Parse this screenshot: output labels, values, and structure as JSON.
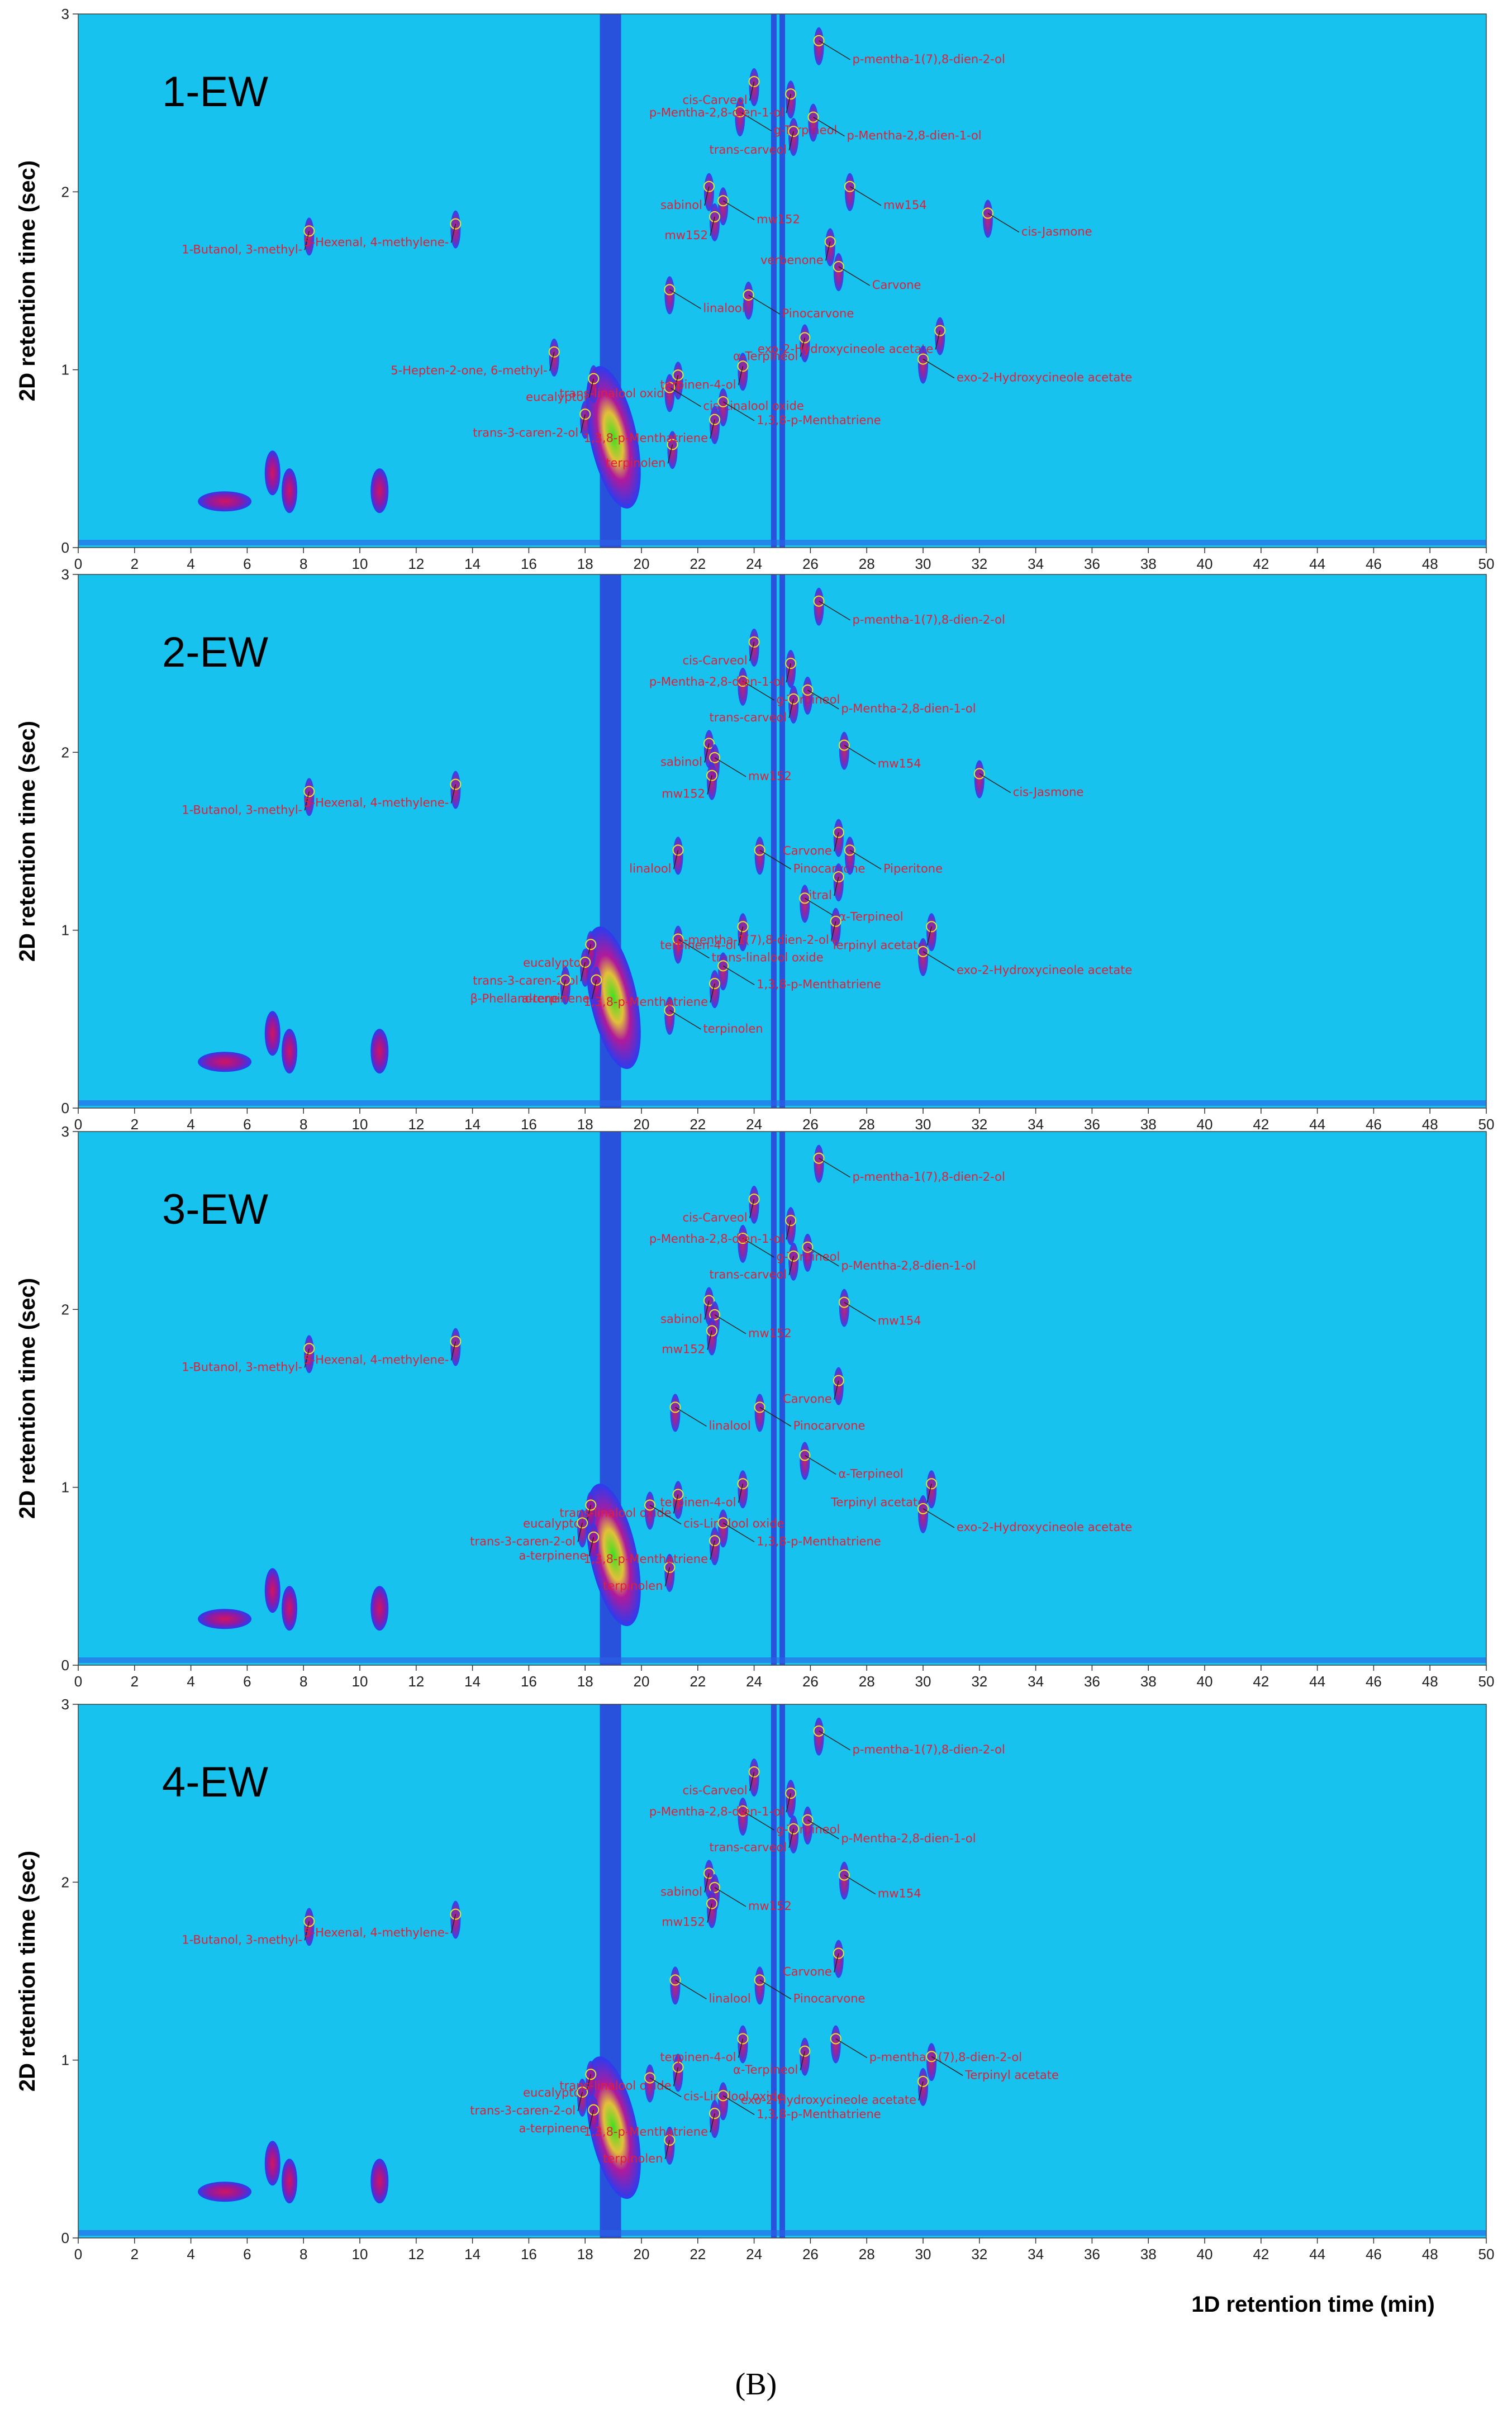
{
  "chart_data": {
    "type": "heatmap",
    "title": "",
    "xlabel": "1D retention time (min)",
    "ylabel": "2D retention time (sec)",
    "xlim": [
      0,
      50
    ],
    "ylim": [
      0,
      3
    ],
    "x_ticks": [
      "0",
      "2",
      "4",
      "6",
      "8",
      "10",
      "12",
      "14",
      "16",
      "18",
      "20",
      "22",
      "24",
      "26",
      "28",
      "30",
      "32",
      "34",
      "36",
      "38",
      "40",
      "42",
      "44",
      "46",
      "48",
      "50"
    ],
    "y_ticks": [
      "0",
      "1",
      "2",
      "3"
    ],
    "legend": "none",
    "caption": "(B)",
    "colors": {
      "background": "#18c2ee",
      "peak_low": "#2a3cf0",
      "peak_mid": "#b01a9a",
      "peak_high": "#3de020",
      "label": "#e0203a"
    },
    "panels": [
      {
        "label": "1-EW",
        "peaks": [
          {
            "name": "1-Butanol, 3-methyl-",
            "x": 8.2,
            "y": 1.78
          },
          {
            "name": "5-Hexenal, 4-methylene-",
            "x": 13.4,
            "y": 1.82
          },
          {
            "name": "5-Hepten-2-one, 6-methyl-",
            "x": 16.9,
            "y": 1.1
          },
          {
            "name": "eucalyptol",
            "x": 18.3,
            "y": 0.95
          },
          {
            "name": "trans-3-caren-2-ol",
            "x": 18.0,
            "y": 0.75
          },
          {
            "name": "terpinolen",
            "x": 21.1,
            "y": 0.58
          },
          {
            "name": "linalool",
            "x": 21.0,
            "y": 1.45
          },
          {
            "name": "trans-linalool oxide",
            "x": 21.3,
            "y": 0.97
          },
          {
            "name": "cis-Linalool oxide",
            "x": 21.0,
            "y": 0.9
          },
          {
            "name": "sabinol",
            "x": 22.4,
            "y": 2.03
          },
          {
            "name": "mw152",
            "x": 22.9,
            "y": 1.95
          },
          {
            "name": "mw152",
            "x": 22.6,
            "y": 1.86
          },
          {
            "name": "g-Terpineol",
            "x": 23.5,
            "y": 2.45
          },
          {
            "name": "cis-Carveol",
            "x": 24.0,
            "y": 2.62
          },
          {
            "name": "Pinocarvone",
            "x": 23.8,
            "y": 1.42
          },
          {
            "name": "terpinen-4-ol",
            "x": 23.6,
            "y": 1.02
          },
          {
            "name": "1,3,8-p-Menthatriene",
            "x": 22.9,
            "y": 0.82
          },
          {
            "name": "1,3,8-p-Menthatriene",
            "x": 22.6,
            "y": 0.72
          },
          {
            "name": "p-mentha-1(7),8-dien-2-ol",
            "x": 26.3,
            "y": 2.85
          },
          {
            "name": "p-Mentha-2,8-dien-1-ol",
            "x": 25.3,
            "y": 2.55
          },
          {
            "name": "p-Mentha-2,8-dien-1-ol",
            "x": 26.1,
            "y": 2.42
          },
          {
            "name": "trans-carveol",
            "x": 25.4,
            "y": 2.34
          },
          {
            "name": "mw154",
            "x": 27.4,
            "y": 2.03
          },
          {
            "name": "verbenone",
            "x": 26.7,
            "y": 1.72
          },
          {
            "name": "Carvone",
            "x": 27.0,
            "y": 1.58
          },
          {
            "name": "α-Terpineol",
            "x": 25.8,
            "y": 1.18
          },
          {
            "name": "cis-Jasmone",
            "x": 32.3,
            "y": 1.88
          },
          {
            "name": "exo-2-Hydroxycineole acetate",
            "x": 30.6,
            "y": 1.22
          },
          {
            "name": "exo-2-Hydroxycineole acetate",
            "x": 30.0,
            "y": 1.06
          }
        ]
      },
      {
        "label": "2-EW",
        "peaks": [
          {
            "name": "1-Butanol, 3-methyl-",
            "x": 8.2,
            "y": 1.78
          },
          {
            "name": "5-Hexenal, 4-methylene-",
            "x": 13.4,
            "y": 1.82
          },
          {
            "name": "eucalyptol",
            "x": 18.2,
            "y": 0.92
          },
          {
            "name": "trans-3-caren-2-ol",
            "x": 18.0,
            "y": 0.82
          },
          {
            "name": "β-Phellandrene",
            "x": 17.3,
            "y": 0.72
          },
          {
            "name": "a-terpinene",
            "x": 18.4,
            "y": 0.72
          },
          {
            "name": "terpinolen",
            "x": 21.0,
            "y": 0.55
          },
          {
            "name": "linalool",
            "x": 21.3,
            "y": 1.45
          },
          {
            "name": "trans-linalool oxide",
            "x": 21.3,
            "y": 0.95
          },
          {
            "name": "sabinol",
            "x": 22.4,
            "y": 2.05
          },
          {
            "name": "mw152",
            "x": 22.6,
            "y": 1.97
          },
          {
            "name": "mw152",
            "x": 22.5,
            "y": 1.87
          },
          {
            "name": "g-Terpineol",
            "x": 23.6,
            "y": 2.4
          },
          {
            "name": "cis-Carveol",
            "x": 24.0,
            "y": 2.62
          },
          {
            "name": "Pinocarvone",
            "x": 24.2,
            "y": 1.45
          },
          {
            "name": "terpinen-4-ol",
            "x": 23.6,
            "y": 1.02
          },
          {
            "name": "1,3,8-p-Menthatriene",
            "x": 22.9,
            "y": 0.8
          },
          {
            "name": "1,3,8-p-Menthatriene",
            "x": 22.6,
            "y": 0.7
          },
          {
            "name": "p-mentha-1(7),8-dien-2-ol",
            "x": 26.3,
            "y": 2.85
          },
          {
            "name": "p-Mentha-2,8-dien-1-ol",
            "x": 25.3,
            "y": 2.5
          },
          {
            "name": "p-Mentha-2,8-dien-1-ol",
            "x": 25.9,
            "y": 2.35
          },
          {
            "name": "trans-carveol",
            "x": 25.4,
            "y": 2.3
          },
          {
            "name": "mw154",
            "x": 27.2,
            "y": 2.04
          },
          {
            "name": "Carvone",
            "x": 27.0,
            "y": 1.55
          },
          {
            "name": "Piperitone",
            "x": 27.4,
            "y": 1.45
          },
          {
            "name": "Citral",
            "x": 27.0,
            "y": 1.3
          },
          {
            "name": "α-Terpineol",
            "x": 25.8,
            "y": 1.18
          },
          {
            "name": "p-mentha-1(7),8-dien-2-ol",
            "x": 26.9,
            "y": 1.05
          },
          {
            "name": "cis-Jasmone",
            "x": 32.0,
            "y": 1.88
          },
          {
            "name": "Terpinyl acetate",
            "x": 30.3,
            "y": 1.02
          },
          {
            "name": "exo-2-Hydroxycineole acetate",
            "x": 30.0,
            "y": 0.88
          }
        ]
      },
      {
        "label": "3-EW",
        "peaks": [
          {
            "name": "1-Butanol, 3-methyl-",
            "x": 8.2,
            "y": 1.78
          },
          {
            "name": "5-Hexenal, 4-methylene-",
            "x": 13.4,
            "y": 1.82
          },
          {
            "name": "eucalyptol",
            "x": 18.2,
            "y": 0.9
          },
          {
            "name": "trans-3-caren-2-ol",
            "x": 17.9,
            "y": 0.8
          },
          {
            "name": "a-terpinene",
            "x": 18.3,
            "y": 0.72
          },
          {
            "name": "terpinolen",
            "x": 21.0,
            "y": 0.55
          },
          {
            "name": "linalool",
            "x": 21.2,
            "y": 1.45
          },
          {
            "name": "trans-linalool oxide",
            "x": 21.3,
            "y": 0.96
          },
          {
            "name": "cis-Linalool oxide",
            "x": 20.3,
            "y": 0.9
          },
          {
            "name": "sabinol",
            "x": 22.4,
            "y": 2.05
          },
          {
            "name": "mw152",
            "x": 22.6,
            "y": 1.97
          },
          {
            "name": "mw152",
            "x": 22.5,
            "y": 1.88
          },
          {
            "name": "g-Terpineol",
            "x": 23.6,
            "y": 2.4
          },
          {
            "name": "cis-Carveol",
            "x": 24.0,
            "y": 2.62
          },
          {
            "name": "Pinocarvone",
            "x": 24.2,
            "y": 1.45
          },
          {
            "name": "terpinen-4-ol",
            "x": 23.6,
            "y": 1.02
          },
          {
            "name": "1,3,8-p-Menthatriene",
            "x": 22.9,
            "y": 0.8
          },
          {
            "name": "1,3,8-p-Menthatriene",
            "x": 22.6,
            "y": 0.7
          },
          {
            "name": "p-mentha-1(7),8-dien-2-ol",
            "x": 26.3,
            "y": 2.85
          },
          {
            "name": "p-Mentha-2,8-dien-1-ol",
            "x": 25.3,
            "y": 2.5
          },
          {
            "name": "p-Mentha-2,8-dien-1-ol",
            "x": 25.9,
            "y": 2.35
          },
          {
            "name": "trans-carveol",
            "x": 25.4,
            "y": 2.3
          },
          {
            "name": "mw154",
            "x": 27.2,
            "y": 2.04
          },
          {
            "name": "Carvone",
            "x": 27.0,
            "y": 1.6
          },
          {
            "name": "α-Terpineol",
            "x": 25.8,
            "y": 1.18
          },
          {
            "name": "Terpinyl acetate",
            "x": 30.3,
            "y": 1.02
          },
          {
            "name": "exo-2-Hydroxycineole acetate",
            "x": 30.0,
            "y": 0.88
          }
        ]
      },
      {
        "label": "4-EW",
        "peaks": [
          {
            "name": "1-Butanol, 3-methyl-",
            "x": 8.2,
            "y": 1.78
          },
          {
            "name": "5-Hexenal, 4-methylene-",
            "x": 13.4,
            "y": 1.82
          },
          {
            "name": "eucalyptol",
            "x": 18.2,
            "y": 0.92
          },
          {
            "name": "trans-3-caren-2-ol",
            "x": 17.9,
            "y": 0.82
          },
          {
            "name": "a-terpinene",
            "x": 18.3,
            "y": 0.72
          },
          {
            "name": "terpinolen",
            "x": 21.0,
            "y": 0.55
          },
          {
            "name": "linalool",
            "x": 21.2,
            "y": 1.45
          },
          {
            "name": "trans-linalool oxide",
            "x": 21.3,
            "y": 0.96
          },
          {
            "name": "cis-Linalool oxide",
            "x": 20.3,
            "y": 0.9
          },
          {
            "name": "sabinol",
            "x": 22.4,
            "y": 2.05
          },
          {
            "name": "mw152",
            "x": 22.6,
            "y": 1.97
          },
          {
            "name": "mw152",
            "x": 22.5,
            "y": 1.88
          },
          {
            "name": "g-Terpineol",
            "x": 23.6,
            "y": 2.4
          },
          {
            "name": "cis-Carveol",
            "x": 24.0,
            "y": 2.62
          },
          {
            "name": "Pinocarvone",
            "x": 24.2,
            "y": 1.45
          },
          {
            "name": "terpinen-4-ol",
            "x": 23.6,
            "y": 1.12
          },
          {
            "name": "1,3,8-p-Menthatriene",
            "x": 22.9,
            "y": 0.8
          },
          {
            "name": "1,3,8-p-Menthatriene",
            "x": 22.6,
            "y": 0.7
          },
          {
            "name": "p-mentha-1(7),8-dien-2-ol",
            "x": 26.3,
            "y": 2.85
          },
          {
            "name": "p-Mentha-2,8-dien-1-ol",
            "x": 25.3,
            "y": 2.5
          },
          {
            "name": "p-Mentha-2,8-dien-1-ol",
            "x": 25.9,
            "y": 2.35
          },
          {
            "name": "trans-carveol",
            "x": 25.4,
            "y": 2.3
          },
          {
            "name": "mw154",
            "x": 27.2,
            "y": 2.04
          },
          {
            "name": "Carvone",
            "x": 27.0,
            "y": 1.6
          },
          {
            "name": "p-mentha-1(7),8-dien-2-ol",
            "x": 26.9,
            "y": 1.12
          },
          {
            "name": "α-Terpineol",
            "x": 25.8,
            "y": 1.05
          },
          {
            "name": "Terpinyl acetate",
            "x": 30.3,
            "y": 1.02
          },
          {
            "name": "exo-2-Hydroxycineole acetate",
            "x": 30.0,
            "y": 0.88
          }
        ]
      }
    ]
  }
}
